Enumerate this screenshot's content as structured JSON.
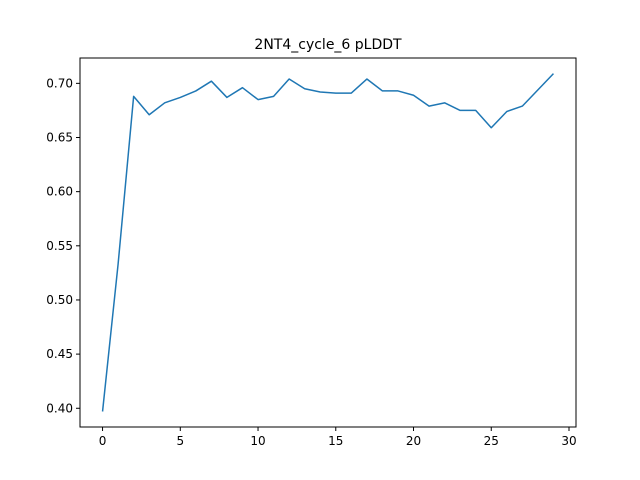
{
  "chart_data": {
    "type": "line",
    "title": "2NT4_cycle_6 pLDDT",
    "xlabel": "",
    "ylabel": "",
    "xlim": [
      -1.45,
      30.45
    ],
    "ylim": [
      0.3827,
      0.7234
    ],
    "xticks": [
      0,
      5,
      10,
      15,
      20,
      25,
      30
    ],
    "yticks": [
      0.4,
      0.45,
      0.5,
      0.55,
      0.6,
      0.65,
      0.7
    ],
    "xtick_labels": [
      "0",
      "5",
      "10",
      "15",
      "20",
      "25",
      "30"
    ],
    "ytick_labels": [
      "0.40",
      "0.45",
      "0.50",
      "0.55",
      "0.60",
      "0.65",
      "0.70"
    ],
    "grid": false,
    "series": [
      {
        "color": "#1f77b4",
        "x": [
          0,
          1,
          2,
          3,
          4,
          5,
          6,
          7,
          8,
          9,
          10,
          11,
          12,
          13,
          14,
          15,
          16,
          17,
          18,
          19,
          20,
          21,
          22,
          23,
          24,
          25,
          26,
          27,
          28,
          29
        ],
        "y": [
          0.397,
          0.533,
          0.688,
          0.671,
          0.682,
          0.687,
          0.693,
          0.702,
          0.687,
          0.696,
          0.685,
          0.688,
          0.704,
          0.695,
          0.692,
          0.691,
          0.691,
          0.704,
          0.693,
          0.693,
          0.689,
          0.679,
          0.682,
          0.675,
          0.675,
          0.659,
          0.674,
          0.679,
          0.694,
          0.709
        ]
      }
    ]
  }
}
